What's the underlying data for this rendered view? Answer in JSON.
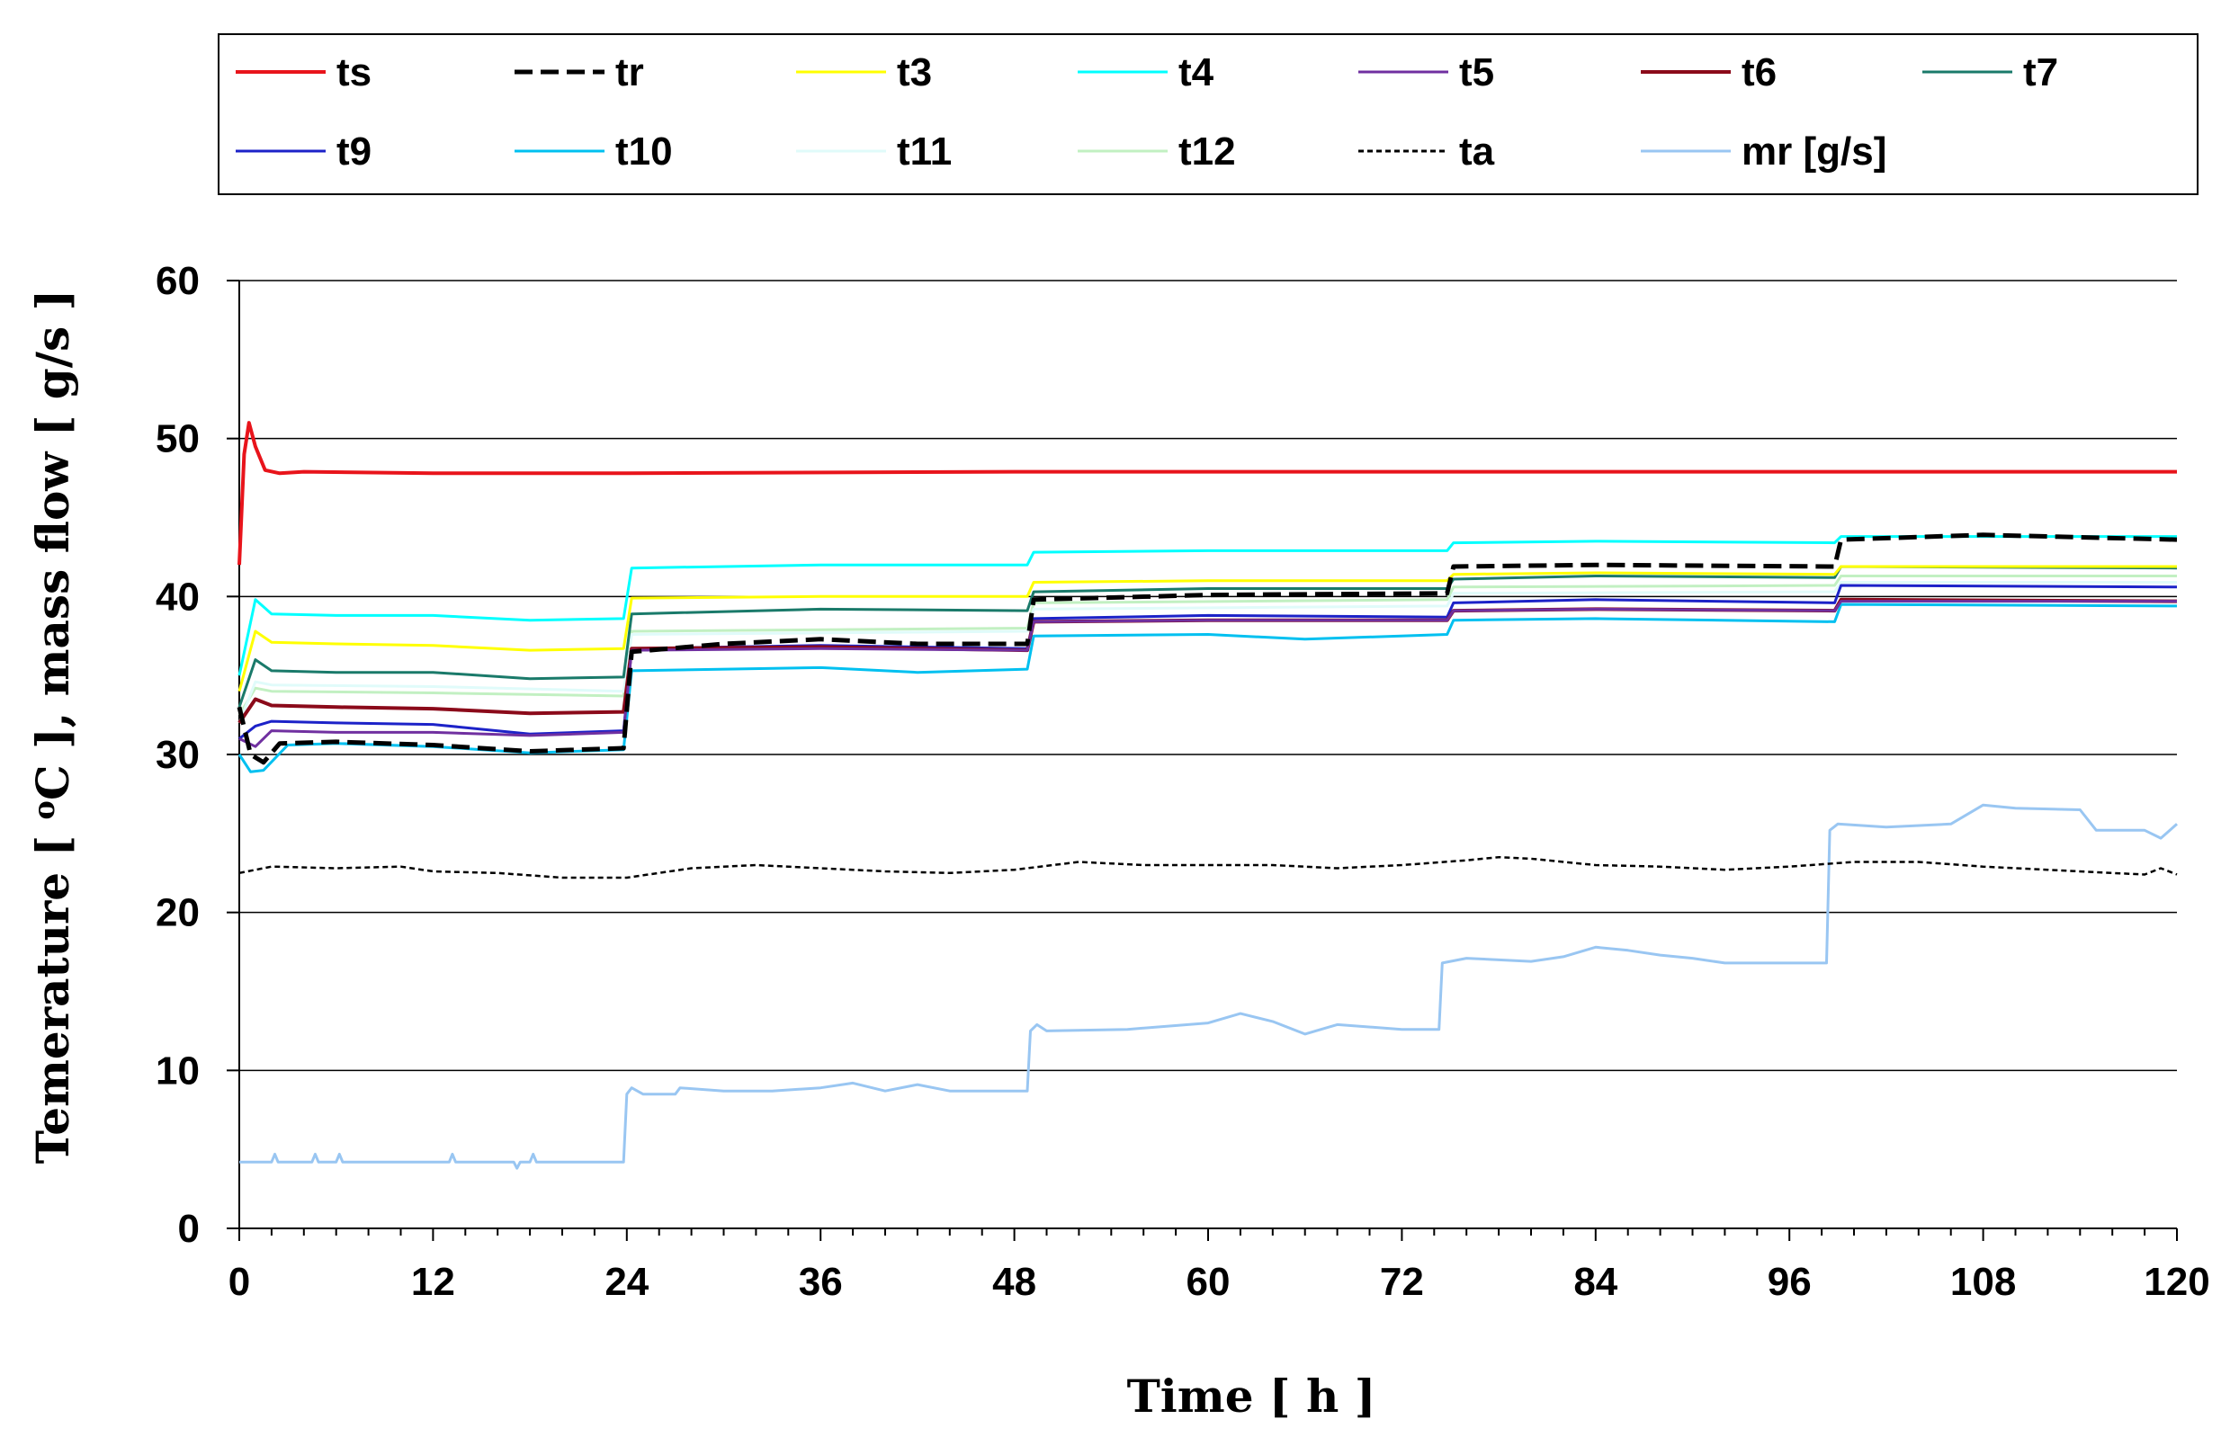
{
  "chart_data": {
    "type": "line",
    "title": "",
    "xlabel": "Time [ h ]",
    "ylabel_main": "Temerature [ ",
    "ylabel_sup": "o",
    "ylabel_rest": "C ], mass flow [ g/s ]",
    "xlim": [
      0,
      120
    ],
    "ylim": [
      0,
      60
    ],
    "xticks": [
      "0",
      "12",
      "24",
      "36",
      "48",
      "60",
      "72",
      "84",
      "96",
      "108",
      "120"
    ],
    "yticks": [
      "0",
      "10",
      "20",
      "30",
      "40",
      "50",
      "60"
    ],
    "grid": "horizontal",
    "legend_position": "top",
    "series": [
      {
        "name": "ts",
        "color": "#e8141b",
        "dash": "solid",
        "width": 4,
        "points": [
          [
            0,
            42
          ],
          [
            0.3,
            49
          ],
          [
            0.6,
            51
          ],
          [
            1,
            49.5
          ],
          [
            1.6,
            48
          ],
          [
            2.5,
            47.8
          ],
          [
            4,
            47.9
          ],
          [
            12,
            47.8
          ],
          [
            24,
            47.8
          ],
          [
            48,
            47.9
          ],
          [
            72,
            47.9
          ],
          [
            96,
            47.9
          ],
          [
            120,
            47.9
          ]
        ]
      },
      {
        "name": "tr",
        "color": "#000000",
        "dash": "20,9",
        "width": 5,
        "points": [
          [
            0,
            33
          ],
          [
            0.7,
            30
          ],
          [
            1.5,
            29.5
          ],
          [
            2.5,
            30.7
          ],
          [
            6,
            30.8
          ],
          [
            12,
            30.6
          ],
          [
            18,
            30.2
          ],
          [
            23.8,
            30.4
          ],
          [
            24.3,
            36.5
          ],
          [
            30,
            37
          ],
          [
            36,
            37.3
          ],
          [
            42,
            37
          ],
          [
            48.8,
            37
          ],
          [
            49.2,
            39.8
          ],
          [
            60,
            40.1
          ],
          [
            74.8,
            40.2
          ],
          [
            75.2,
            41.9
          ],
          [
            84,
            42
          ],
          [
            98.8,
            41.9
          ],
          [
            99.2,
            43.6
          ],
          [
            108,
            43.9
          ],
          [
            120,
            43.6
          ]
        ]
      },
      {
        "name": "t3",
        "color": "#ffff00",
        "dash": "solid",
        "width": 3,
        "points": [
          [
            0,
            34
          ],
          [
            1,
            37.8
          ],
          [
            2,
            37.1
          ],
          [
            6,
            37
          ],
          [
            12,
            36.9
          ],
          [
            18,
            36.6
          ],
          [
            23.8,
            36.7
          ],
          [
            24.3,
            39.9
          ],
          [
            36,
            40
          ],
          [
            48.8,
            40
          ],
          [
            49.2,
            40.9
          ],
          [
            60,
            41
          ],
          [
            74.8,
            41
          ],
          [
            75.2,
            41.4
          ],
          [
            84,
            41.5
          ],
          [
            98.8,
            41.4
          ],
          [
            99.2,
            41.9
          ],
          [
            120,
            41.9
          ]
        ]
      },
      {
        "name": "t4",
        "color": "#00ffff",
        "dash": "solid",
        "width": 3,
        "points": [
          [
            0,
            35
          ],
          [
            1,
            39.8
          ],
          [
            2,
            38.9
          ],
          [
            6,
            38.8
          ],
          [
            12,
            38.8
          ],
          [
            18,
            38.5
          ],
          [
            23.8,
            38.6
          ],
          [
            24.3,
            41.8
          ],
          [
            36,
            42
          ],
          [
            48.8,
            42
          ],
          [
            49.2,
            42.8
          ],
          [
            60,
            42.9
          ],
          [
            74.8,
            42.9
          ],
          [
            75.2,
            43.4
          ],
          [
            84,
            43.5
          ],
          [
            98.8,
            43.4
          ],
          [
            99.2,
            43.8
          ],
          [
            120,
            43.8
          ]
        ]
      },
      {
        "name": "t5",
        "color": "#7030a0",
        "dash": "solid",
        "width": 3,
        "points": [
          [
            0,
            31
          ],
          [
            1,
            30.5
          ],
          [
            2,
            31.5
          ],
          [
            6,
            31.4
          ],
          [
            12,
            31.4
          ],
          [
            18,
            31.2
          ],
          [
            23.8,
            31.4
          ],
          [
            24.3,
            36.6
          ],
          [
            36,
            36.7
          ],
          [
            48.8,
            36.6
          ],
          [
            49.2,
            38.4
          ],
          [
            60,
            38.5
          ],
          [
            74.8,
            38.5
          ],
          [
            75.2,
            39.1
          ],
          [
            84,
            39.2
          ],
          [
            98.8,
            39.1
          ],
          [
            99.2,
            39.7
          ],
          [
            120,
            39.7
          ]
        ]
      },
      {
        "name": "t6",
        "color": "#8b0a1a",
        "dash": "solid",
        "width": 4,
        "points": [
          [
            0,
            32
          ],
          [
            1,
            33.5
          ],
          [
            2,
            33.1
          ],
          [
            6,
            33
          ],
          [
            12,
            32.9
          ],
          [
            18,
            32.6
          ],
          [
            23.8,
            32.7
          ],
          [
            24.3,
            36.7
          ],
          [
            36,
            36.8
          ],
          [
            48.8,
            36.6
          ],
          [
            49.2,
            38.4
          ],
          [
            60,
            38.5
          ],
          [
            74.8,
            38.5
          ],
          [
            75.2,
            39.1
          ],
          [
            84,
            39.2
          ],
          [
            98.8,
            39.1
          ],
          [
            99.2,
            39.8
          ],
          [
            120,
            39.7
          ]
        ]
      },
      {
        "name": "t7",
        "color": "#1a7a6a",
        "dash": "solid",
        "width": 3,
        "points": [
          [
            0,
            33
          ],
          [
            1,
            36
          ],
          [
            2,
            35.3
          ],
          [
            6,
            35.2
          ],
          [
            12,
            35.2
          ],
          [
            18,
            34.8
          ],
          [
            23.8,
            34.9
          ],
          [
            24.3,
            38.9
          ],
          [
            36,
            39.2
          ],
          [
            48.8,
            39.1
          ],
          [
            49.2,
            40.3
          ],
          [
            60,
            40.5
          ],
          [
            74.8,
            40.5
          ],
          [
            75.2,
            41.1
          ],
          [
            84,
            41.3
          ],
          [
            98.8,
            41.2
          ],
          [
            99.2,
            41.9
          ],
          [
            120,
            41.8
          ]
        ]
      },
      {
        "name": "t9",
        "color": "#1c22c8",
        "dash": "solid",
        "width": 3,
        "points": [
          [
            0,
            31
          ],
          [
            1,
            31.8
          ],
          [
            2,
            32.1
          ],
          [
            6,
            32
          ],
          [
            12,
            31.9
          ],
          [
            18,
            31.3
          ],
          [
            23.8,
            31.5
          ],
          [
            24.3,
            36.7
          ],
          [
            36,
            36.9
          ],
          [
            48.8,
            36.7
          ],
          [
            49.2,
            38.6
          ],
          [
            60,
            38.8
          ],
          [
            74.8,
            38.7
          ],
          [
            75.2,
            39.6
          ],
          [
            84,
            39.8
          ],
          [
            98.8,
            39.6
          ],
          [
            99.2,
            40.7
          ],
          [
            120,
            40.6
          ]
        ]
      },
      {
        "name": "t10",
        "color": "#00c0f0",
        "dash": "solid",
        "width": 3,
        "points": [
          [
            0,
            30
          ],
          [
            0.7,
            28.9
          ],
          [
            1.5,
            29
          ],
          [
            3,
            30.6
          ],
          [
            6,
            30.7
          ],
          [
            12,
            30.5
          ],
          [
            18,
            30.1
          ],
          [
            23.8,
            30.3
          ],
          [
            24.3,
            35.3
          ],
          [
            36,
            35.5
          ],
          [
            42,
            35.2
          ],
          [
            48.8,
            35.4
          ],
          [
            49.2,
            37.5
          ],
          [
            60,
            37.6
          ],
          [
            66,
            37.3
          ],
          [
            74.8,
            37.6
          ],
          [
            75.2,
            38.5
          ],
          [
            84,
            38.6
          ],
          [
            98.8,
            38.4
          ],
          [
            99.2,
            39.5
          ],
          [
            120,
            39.4
          ]
        ]
      },
      {
        "name": "t11",
        "color": "#e0fbfa",
        "dash": "solid",
        "width": 3,
        "points": [
          [
            0,
            32
          ],
          [
            1,
            34.6
          ],
          [
            2,
            34.4
          ],
          [
            12,
            34.3
          ],
          [
            23.8,
            34
          ],
          [
            24.3,
            37.6
          ],
          [
            48.8,
            37.8
          ],
          [
            49.2,
            39.2
          ],
          [
            74.8,
            39.4
          ],
          [
            75.2,
            40.2
          ],
          [
            98.8,
            40.3
          ],
          [
            99.2,
            40.9
          ],
          [
            120,
            40.9
          ]
        ]
      },
      {
        "name": "t12",
        "color": "#c2f0c2",
        "dash": "solid",
        "width": 3,
        "points": [
          [
            0,
            32.5
          ],
          [
            1,
            34.2
          ],
          [
            2,
            34
          ],
          [
            12,
            33.9
          ],
          [
            23.8,
            33.7
          ],
          [
            24.3,
            37.8
          ],
          [
            48.8,
            38
          ],
          [
            49.2,
            39.6
          ],
          [
            74.8,
            39.8
          ],
          [
            75.2,
            40.6
          ],
          [
            98.8,
            40.7
          ],
          [
            99.2,
            41.3
          ],
          [
            120,
            41.3
          ]
        ]
      },
      {
        "name": "ta",
        "color": "#000000",
        "dash": "6,4",
        "width": 2.5,
        "points": [
          [
            0,
            22.5
          ],
          [
            2,
            22.9
          ],
          [
            6,
            22.8
          ],
          [
            10,
            22.9
          ],
          [
            12,
            22.6
          ],
          [
            16,
            22.5
          ],
          [
            20,
            22.2
          ],
          [
            24,
            22.2
          ],
          [
            28,
            22.8
          ],
          [
            32,
            23
          ],
          [
            36,
            22.8
          ],
          [
            40,
            22.6
          ],
          [
            44,
            22.5
          ],
          [
            48,
            22.7
          ],
          [
            52,
            23.2
          ],
          [
            56,
            23
          ],
          [
            60,
            23
          ],
          [
            64,
            23
          ],
          [
            68,
            22.8
          ],
          [
            72,
            23
          ],
          [
            76,
            23.3
          ],
          [
            78,
            23.5
          ],
          [
            80,
            23.4
          ],
          [
            84,
            23
          ],
          [
            88,
            22.9
          ],
          [
            92,
            22.7
          ],
          [
            96,
            22.9
          ],
          [
            100,
            23.2
          ],
          [
            104,
            23.2
          ],
          [
            108,
            22.9
          ],
          [
            112,
            22.7
          ],
          [
            116,
            22.5
          ],
          [
            118,
            22.4
          ],
          [
            119,
            22.8
          ],
          [
            120,
            22.4
          ]
        ]
      },
      {
        "name": "mr [g/s]",
        "color": "#99c6f2",
        "dash": "solid",
        "width": 3,
        "points": [
          [
            0,
            4.2
          ],
          [
            2,
            4.2
          ],
          [
            2.2,
            4.7
          ],
          [
            2.4,
            4.2
          ],
          [
            4.5,
            4.2
          ],
          [
            4.7,
            4.7
          ],
          [
            4.9,
            4.2
          ],
          [
            6,
            4.2
          ],
          [
            6.2,
            4.7
          ],
          [
            6.4,
            4.2
          ],
          [
            13,
            4.2
          ],
          [
            13.2,
            4.7
          ],
          [
            13.4,
            4.2
          ],
          [
            17,
            4.2
          ],
          [
            17.2,
            3.8
          ],
          [
            17.4,
            4.2
          ],
          [
            18,
            4.2
          ],
          [
            18.2,
            4.7
          ],
          [
            18.4,
            4.2
          ],
          [
            23.8,
            4.2
          ],
          [
            24,
            8.5
          ],
          [
            24.3,
            8.9
          ],
          [
            25,
            8.5
          ],
          [
            27,
            8.5
          ],
          [
            27.3,
            8.9
          ],
          [
            30,
            8.7
          ],
          [
            33,
            8.7
          ],
          [
            36,
            8.9
          ],
          [
            38,
            9.2
          ],
          [
            40,
            8.7
          ],
          [
            42,
            9.1
          ],
          [
            44,
            8.7
          ],
          [
            48.8,
            8.7
          ],
          [
            49,
            12.5
          ],
          [
            49.4,
            12.9
          ],
          [
            50,
            12.5
          ],
          [
            55,
            12.6
          ],
          [
            60,
            13
          ],
          [
            62,
            13.6
          ],
          [
            64,
            13.1
          ],
          [
            66,
            12.3
          ],
          [
            68,
            12.9
          ],
          [
            72,
            12.6
          ],
          [
            74.3,
            12.6
          ],
          [
            74.5,
            16.8
          ],
          [
            76,
            17.1
          ],
          [
            80,
            16.9
          ],
          [
            82,
            17.2
          ],
          [
            84,
            17.8
          ],
          [
            86,
            17.6
          ],
          [
            88,
            17.3
          ],
          [
            90,
            17.1
          ],
          [
            92,
            16.8
          ],
          [
            98.3,
            16.8
          ],
          [
            98.5,
            25.2
          ],
          [
            99,
            25.6
          ],
          [
            102,
            25.4
          ],
          [
            106,
            25.6
          ],
          [
            108,
            26.8
          ],
          [
            110,
            26.6
          ],
          [
            114,
            26.5
          ],
          [
            115,
            25.2
          ],
          [
            118,
            25.2
          ],
          [
            119,
            24.7
          ],
          [
            120,
            25.6
          ]
        ]
      }
    ]
  }
}
